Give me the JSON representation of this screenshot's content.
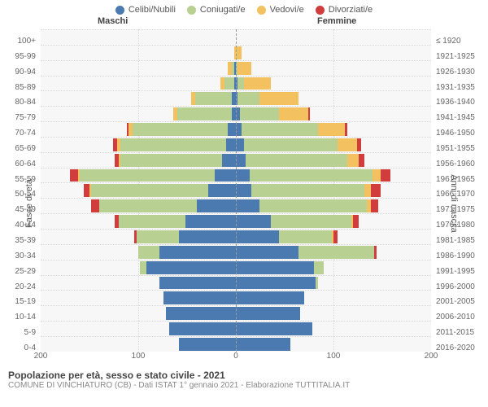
{
  "legend": {
    "items": [
      {
        "label": "Celibi/Nubili",
        "color": "#4a7ab0"
      },
      {
        "label": "Coniugati/e",
        "color": "#b8d193"
      },
      {
        "label": "Vedovi/e",
        "color": "#f3c15f"
      },
      {
        "label": "Divorziati/e",
        "color": "#d13c3c"
      }
    ]
  },
  "headers": {
    "male": "Maschi",
    "female": "Femmine"
  },
  "axis_titles": {
    "left": "Fasce di età",
    "right": "Anni di nascita"
  },
  "x_axis": {
    "max": 200,
    "ticks": [
      {
        "value": -200,
        "label": "200"
      },
      {
        "value": -100,
        "label": "100"
      },
      {
        "value": 0,
        "label": "0"
      },
      {
        "value": 100,
        "label": "100"
      },
      {
        "value": 200,
        "label": "200"
      }
    ]
  },
  "colors": {
    "celibi": "#4a7ab0",
    "coniug": "#b8d193",
    "vedovi": "#f3c15f",
    "divorz": "#d13c3c",
    "plot_bg": "#f7f7f7",
    "grid": "#d8d8d8"
  },
  "rows": [
    {
      "age": "100+",
      "birth": "≤ 1920",
      "m": [
        0,
        0,
        0,
        0
      ],
      "f": [
        0,
        0,
        0,
        0
      ]
    },
    {
      "age": "95-99",
      "birth": "1921-1925",
      "m": [
        0,
        0,
        2,
        0
      ],
      "f": [
        0,
        0,
        6,
        0
      ]
    },
    {
      "age": "90-94",
      "birth": "1926-1930",
      "m": [
        2,
        2,
        4,
        0
      ],
      "f": [
        0,
        2,
        14,
        0
      ]
    },
    {
      "age": "85-89",
      "birth": "1931-1935",
      "m": [
        2,
        10,
        4,
        0
      ],
      "f": [
        2,
        6,
        28,
        0
      ]
    },
    {
      "age": "80-84",
      "birth": "1936-1940",
      "m": [
        4,
        38,
        4,
        0
      ],
      "f": [
        2,
        22,
        40,
        0
      ]
    },
    {
      "age": "75-79",
      "birth": "1941-1945",
      "m": [
        4,
        56,
        4,
        0
      ],
      "f": [
        4,
        40,
        30,
        2
      ]
    },
    {
      "age": "70-74",
      "birth": "1946-1950",
      "m": [
        8,
        98,
        4,
        2
      ],
      "f": [
        6,
        78,
        28,
        2
      ]
    },
    {
      "age": "65-69",
      "birth": "1951-1955",
      "m": [
        10,
        108,
        4,
        4
      ],
      "f": [
        8,
        96,
        20,
        4
      ]
    },
    {
      "age": "60-64",
      "birth": "1956-1960",
      "m": [
        14,
        104,
        2,
        4
      ],
      "f": [
        10,
        104,
        12,
        6
      ]
    },
    {
      "age": "55-59",
      "birth": "1961-1965",
      "m": [
        22,
        138,
        2,
        8
      ],
      "f": [
        14,
        126,
        8,
        10
      ]
    },
    {
      "age": "50-54",
      "birth": "1966-1970",
      "m": [
        28,
        120,
        2,
        6
      ],
      "f": [
        16,
        116,
        6,
        10
      ]
    },
    {
      "age": "45-49",
      "birth": "1971-1975",
      "m": [
        40,
        100,
        0,
        8
      ],
      "f": [
        24,
        110,
        4,
        8
      ]
    },
    {
      "age": "40-44",
      "birth": "1976-1980",
      "m": [
        52,
        68,
        0,
        4
      ],
      "f": [
        36,
        82,
        2,
        6
      ]
    },
    {
      "age": "35-39",
      "birth": "1981-1985",
      "m": [
        58,
        44,
        0,
        2
      ],
      "f": [
        44,
        54,
        2,
        4
      ]
    },
    {
      "age": "30-34",
      "birth": "1986-1990",
      "m": [
        78,
        22,
        0,
        0
      ],
      "f": [
        64,
        78,
        0,
        2
      ]
    },
    {
      "age": "25-29",
      "birth": "1991-1995",
      "m": [
        92,
        6,
        0,
        0
      ],
      "f": [
        80,
        10,
        0,
        0
      ]
    },
    {
      "age": "20-24",
      "birth": "1996-2000",
      "m": [
        78,
        0,
        0,
        0
      ],
      "f": [
        82,
        2,
        0,
        0
      ]
    },
    {
      "age": "15-19",
      "birth": "2001-2005",
      "m": [
        74,
        0,
        0,
        0
      ],
      "f": [
        70,
        0,
        0,
        0
      ]
    },
    {
      "age": "10-14",
      "birth": "2006-2010",
      "m": [
        72,
        0,
        0,
        0
      ],
      "f": [
        66,
        0,
        0,
        0
      ]
    },
    {
      "age": "5-9",
      "birth": "2011-2015",
      "m": [
        68,
        0,
        0,
        0
      ],
      "f": [
        78,
        0,
        0,
        0
      ]
    },
    {
      "age": "0-4",
      "birth": "2016-2020",
      "m": [
        58,
        0,
        0,
        0
      ],
      "f": [
        56,
        0,
        0,
        0
      ]
    }
  ],
  "footer": {
    "title": "Popolazione per età, sesso e stato civile - 2021",
    "subtitle": "COMUNE DI VINCHIATURO (CB) - Dati ISTAT 1° gennaio 2021 - Elaborazione TUTTITALIA.IT"
  }
}
